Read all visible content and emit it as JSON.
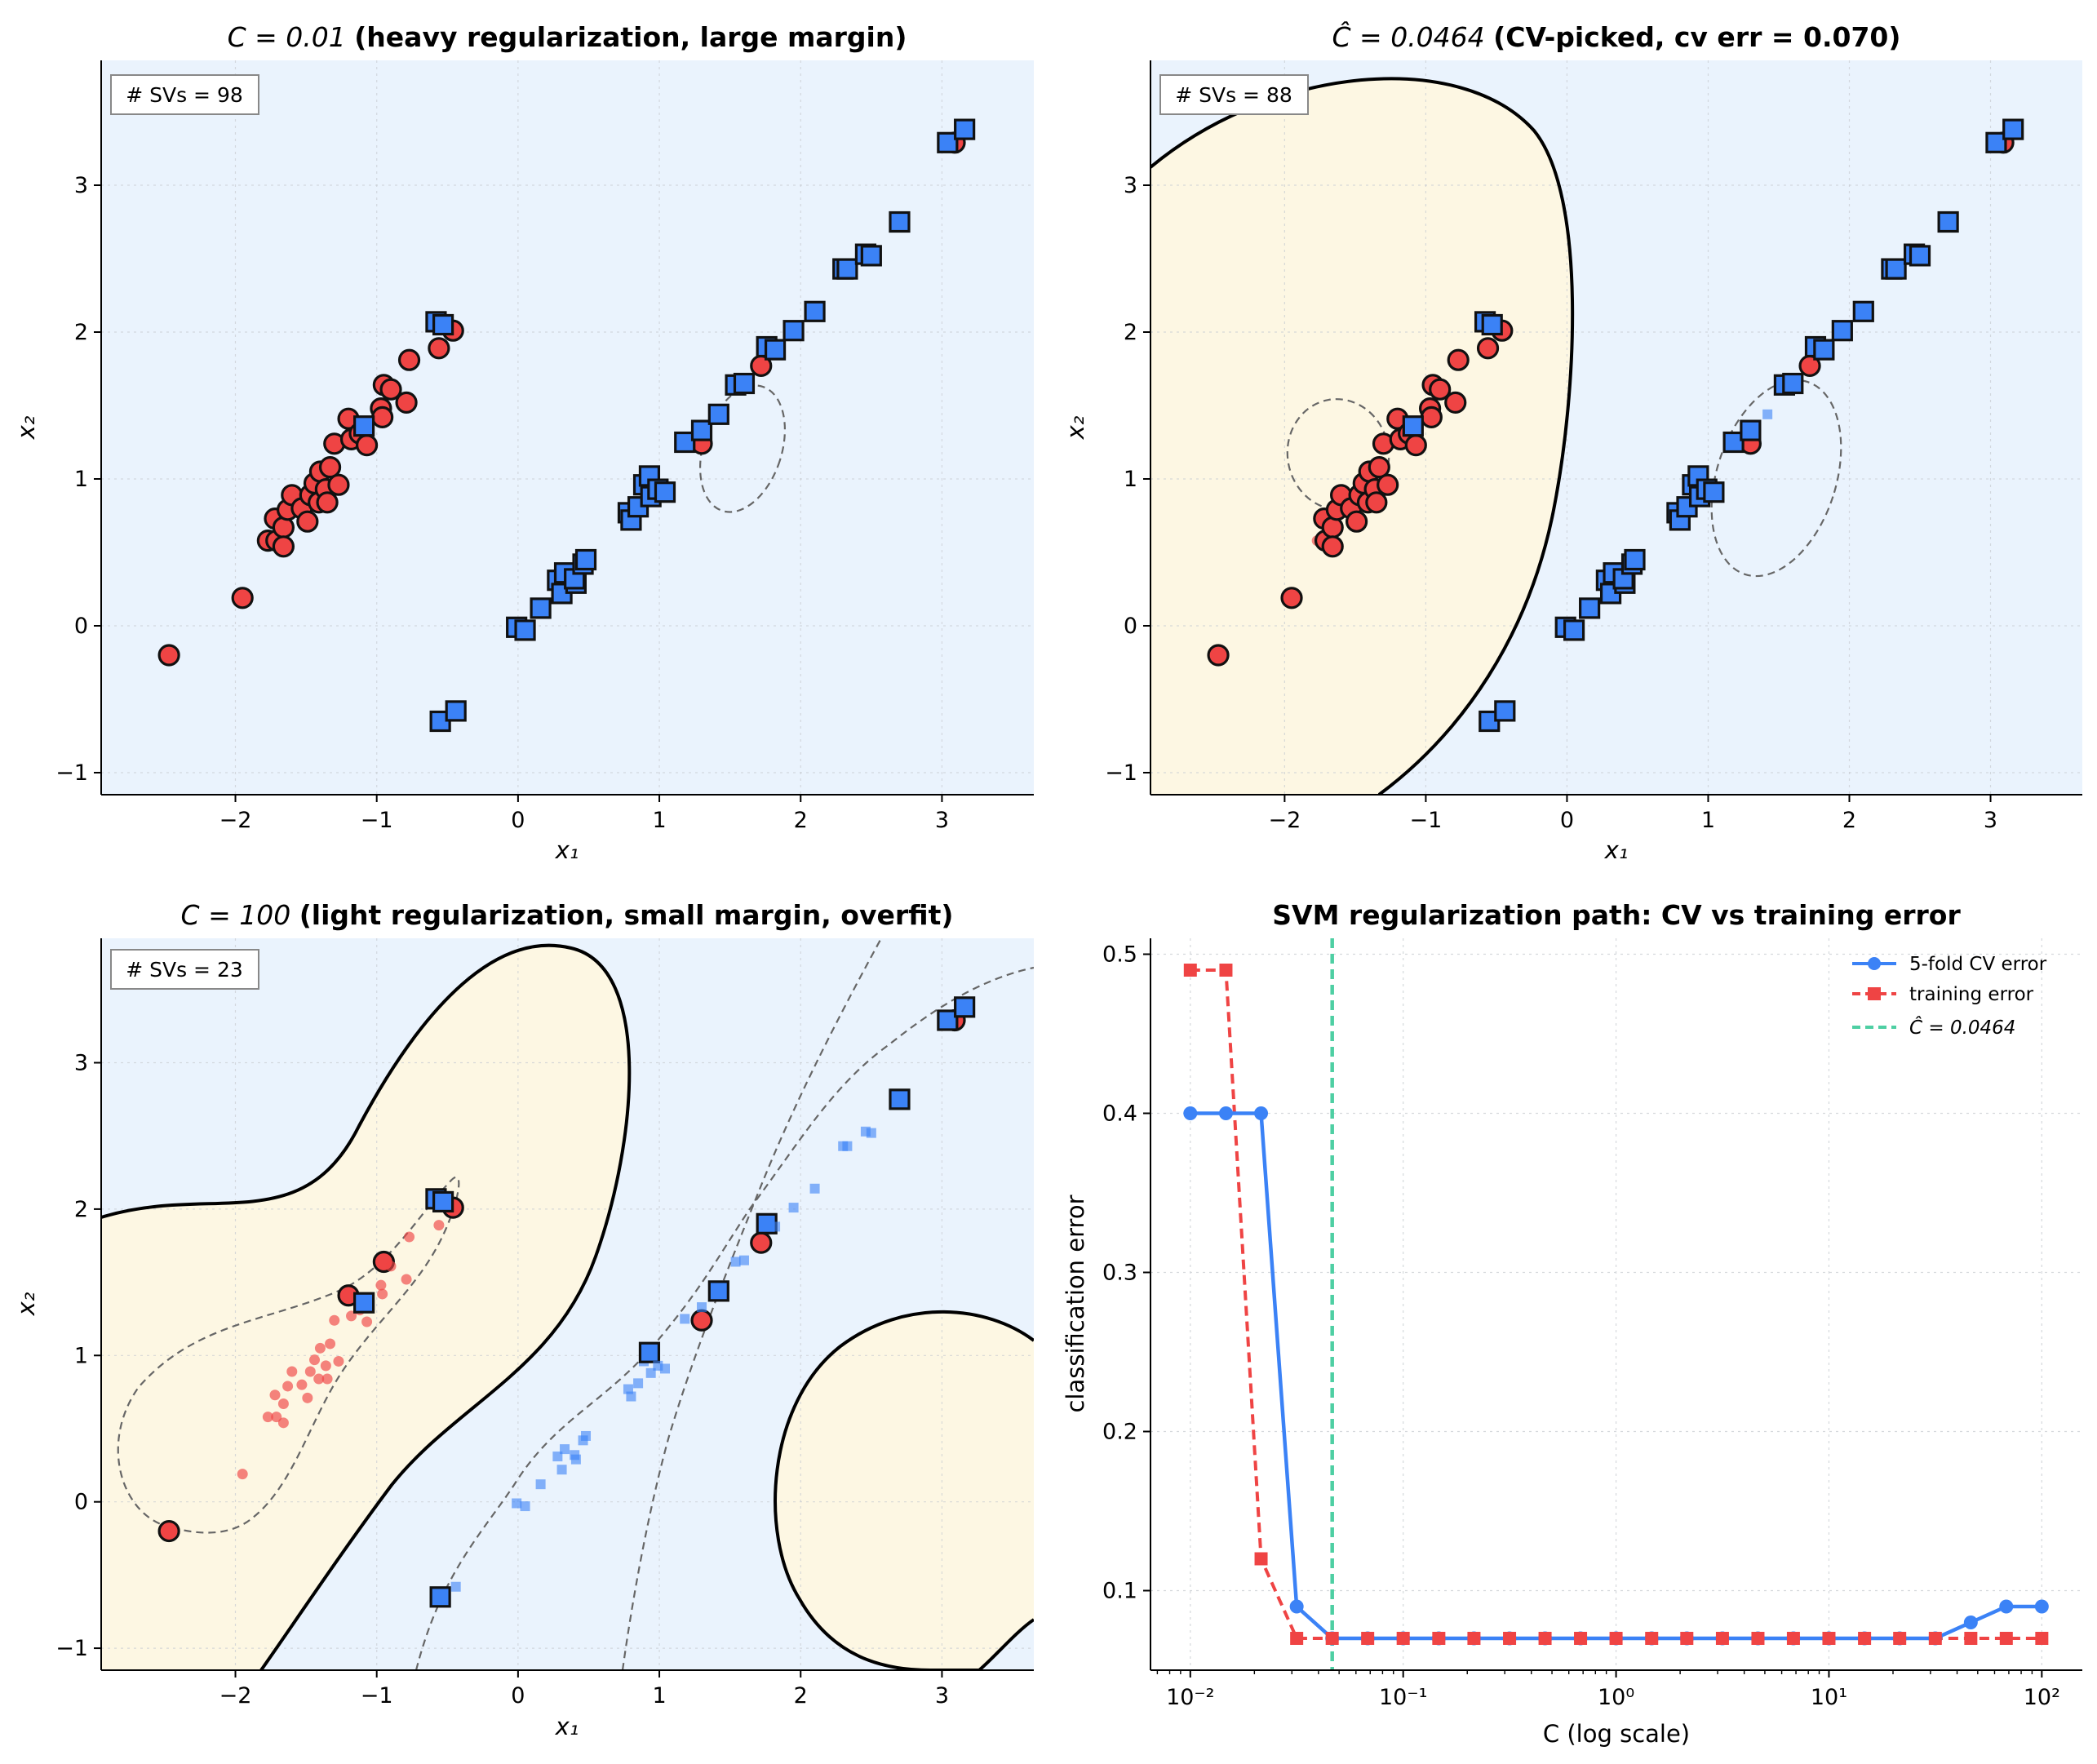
{
  "colors": {
    "class_red": "#ef4444",
    "class_blue": "#3b82f6",
    "region_blue": "#eaf3fd",
    "region_yellow": "#fdf7e3",
    "cv_line": "#3b82f6",
    "train_line": "#ef4444",
    "chat_line": "#4ecfa3"
  },
  "chart_data": [
    {
      "type": "scatter",
      "panel": "top-left",
      "title_math": "C = 0.01",
      "title_text": "(heavy regularization, large margin)",
      "sv_label": "# SVs = 98",
      "xlabel": "x₁",
      "ylabel": "x₂",
      "xlim": [
        -2.95,
        3.65
      ],
      "ylim": [
        -1.15,
        3.85
      ],
      "xticks": [
        "−2",
        "−1",
        "0",
        "1",
        "2",
        "3"
      ],
      "yticks": [
        "−1",
        "0",
        "1",
        "2",
        "3"
      ],
      "grid": true,
      "decision_boundary": "none visible (whole plotted region classified blue)",
      "support_vector_highlight": "all points except a few"
    },
    {
      "type": "scatter",
      "panel": "top-right",
      "title_math": "Ĉ = 0.0464",
      "title_text": "(CV-picked, cv err = 0.070)",
      "sv_label": "# SVs = 88",
      "xlabel": "x₁",
      "ylabel": "x₂",
      "xlim": [
        -2.95,
        3.65
      ],
      "ylim": [
        -1.15,
        3.85
      ],
      "xticks": [
        "−2",
        "−1",
        "0",
        "1",
        "2",
        "3"
      ],
      "yticks": [
        "−1",
        "0",
        "1",
        "2",
        "3"
      ],
      "grid": true,
      "decision_boundary": "single curve enclosing left region (red class region)"
    },
    {
      "type": "scatter",
      "panel": "bottom-left",
      "title_math": "C = 100",
      "title_text": "(light regularization, small margin, overfit)",
      "sv_label": "# SVs = 23",
      "xlabel": "x₁",
      "ylabel": "x₂",
      "xlim": [
        -2.95,
        3.65
      ],
      "ylim": [
        -1.15,
        3.85
      ],
      "xticks": [
        "−2",
        "−1",
        "0",
        "1",
        "2",
        "3"
      ],
      "yticks": [
        "−1",
        "0",
        "1",
        "2",
        "3"
      ],
      "grid": true,
      "decision_boundary": "wiggly boundary plus isolated region at lower right"
    },
    {
      "type": "line",
      "panel": "bottom-right",
      "title": "SVM regularization path: CV vs training error",
      "xlabel": "C  (log scale)",
      "ylabel": "classification error",
      "xscale": "log",
      "xlim": [
        0.0065,
        155
      ],
      "ylim": [
        0.05,
        0.51
      ],
      "xticks": [
        0.01,
        0.1,
        1,
        10,
        100
      ],
      "xtick_labels": [
        "10⁻²",
        "10⁻¹",
        "10⁰",
        "10¹",
        "10²"
      ],
      "yticks": [
        0.1,
        0.2,
        0.3,
        0.4,
        0.5
      ],
      "ytick_labels": [
        "0.1",
        "0.2",
        "0.3",
        "0.4",
        "0.5"
      ],
      "grid": true,
      "legend_position": "top-right",
      "x": [
        0.01,
        0.0147,
        0.0215,
        0.0316,
        0.0464,
        0.0681,
        0.1,
        0.147,
        0.215,
        0.316,
        0.464,
        0.681,
        1,
        1.47,
        2.15,
        3.16,
        4.64,
        6.81,
        10,
        14.7,
        21.5,
        31.6,
        46.4,
        68.1,
        100
      ],
      "series": [
        {
          "name": "5-fold CV error",
          "marker": "circle",
          "style": "solid",
          "values": [
            0.4,
            0.4,
            0.4,
            0.09,
            0.07,
            0.07,
            0.07,
            0.07,
            0.07,
            0.07,
            0.07,
            0.07,
            0.07,
            0.07,
            0.07,
            0.07,
            0.07,
            0.07,
            0.07,
            0.07,
            0.07,
            0.07,
            0.08,
            0.09,
            0.09
          ]
        },
        {
          "name": "training error",
          "marker": "square",
          "style": "dashed",
          "values": [
            0.49,
            0.49,
            0.12,
            0.07,
            0.07,
            0.07,
            0.07,
            0.07,
            0.07,
            0.07,
            0.07,
            0.07,
            0.07,
            0.07,
            0.07,
            0.07,
            0.07,
            0.07,
            0.07,
            0.07,
            0.07,
            0.07,
            0.07,
            0.07,
            0.07
          ]
        }
      ],
      "vline": {
        "x": 0.0464,
        "name": "Ĉ = 0.0464",
        "style": "dashed"
      }
    }
  ],
  "points": {
    "red": [
      [
        -2.47,
        -0.2
      ],
      [
        -1.95,
        0.19
      ],
      [
        -1.77,
        0.58
      ],
      [
        -1.71,
        0.58
      ],
      [
        -1.72,
        0.73
      ],
      [
        -1.66,
        0.67
      ],
      [
        -1.66,
        0.54
      ],
      [
        -1.63,
        0.79
      ],
      [
        -1.6,
        0.89
      ],
      [
        -1.53,
        0.8
      ],
      [
        -1.49,
        0.71
      ],
      [
        -1.47,
        0.89
      ],
      [
        -1.44,
        0.97
      ],
      [
        -1.41,
        0.84
      ],
      [
        -1.4,
        1.05
      ],
      [
        -1.36,
        0.93
      ],
      [
        -1.35,
        0.84
      ],
      [
        -1.33,
        1.08
      ],
      [
        -1.3,
        1.24
      ],
      [
        -1.27,
        0.96
      ],
      [
        -1.2,
        1.41
      ],
      [
        -1.18,
        1.27
      ],
      [
        -1.12,
        1.31
      ],
      [
        -1.07,
        1.23
      ],
      [
        -0.97,
        1.48
      ],
      [
        -0.96,
        1.42
      ],
      [
        -0.95,
        1.64
      ],
      [
        -0.9,
        1.61
      ],
      [
        -0.79,
        1.52
      ],
      [
        -0.77,
        1.81
      ],
      [
        -0.56,
        1.89
      ],
      [
        -0.46,
        2.01
      ],
      [
        1.3,
        1.24
      ],
      [
        1.72,
        1.77
      ],
      [
        3.09,
        3.29
      ]
    ],
    "blue": [
      [
        -0.55,
        -0.65
      ],
      [
        -0.44,
        -0.58
      ],
      [
        -0.01,
        -0.01
      ],
      [
        0.05,
        -0.03
      ],
      [
        0.16,
        0.12
      ],
      [
        0.28,
        0.31
      ],
      [
        0.31,
        0.22
      ],
      [
        0.33,
        0.36
      ],
      [
        0.41,
        0.29
      ],
      [
        0.4,
        0.32
      ],
      [
        0.46,
        0.42
      ],
      [
        0.48,
        0.45
      ],
      [
        0.78,
        0.77
      ],
      [
        0.8,
        0.72
      ],
      [
        0.85,
        0.81
      ],
      [
        0.89,
        0.96
      ],
      [
        0.93,
        1.02
      ],
      [
        0.94,
        0.88
      ],
      [
        0.99,
        0.93
      ],
      [
        1.04,
        0.91
      ],
      [
        1.18,
        1.25
      ],
      [
        1.3,
        1.33
      ],
      [
        1.42,
        1.44
      ],
      [
        1.54,
        1.64
      ],
      [
        1.6,
        1.65
      ],
      [
        1.76,
        1.9
      ],
      [
        1.82,
        1.88
      ],
      [
        1.95,
        2.01
      ],
      [
        2.1,
        2.14
      ],
      [
        2.3,
        2.43
      ],
      [
        2.33,
        2.43
      ],
      [
        2.46,
        2.53
      ],
      [
        2.5,
        2.52
      ],
      [
        2.7,
        2.75
      ],
      [
        3.04,
        3.29
      ],
      [
        3.16,
        3.38
      ],
      [
        -1.09,
        1.36
      ],
      [
        -0.58,
        2.07
      ],
      [
        -0.53,
        2.05
      ]
    ],
    "non_sv": {
      "top-left": {
        "red": [],
        "blue": []
      },
      "top-right": {
        "red": [
          2
        ],
        "blue": [
          22
        ]
      },
      "bottom-left": {
        "red": [
          1,
          2,
          3,
          4,
          5,
          6,
          7,
          8,
          9,
          10,
          11,
          12,
          13,
          14,
          15,
          16,
          17,
          18,
          19,
          21,
          22,
          23,
          24,
          25,
          27,
          28,
          29,
          30
        ],
        "blue": [
          1,
          2,
          3,
          4,
          5,
          6,
          7,
          8,
          9,
          10,
          11,
          12,
          13,
          14,
          15,
          17,
          18,
          19,
          20,
          21,
          23,
          24,
          26,
          27,
          28,
          29,
          30,
          31,
          32
        ]
      }
    }
  }
}
